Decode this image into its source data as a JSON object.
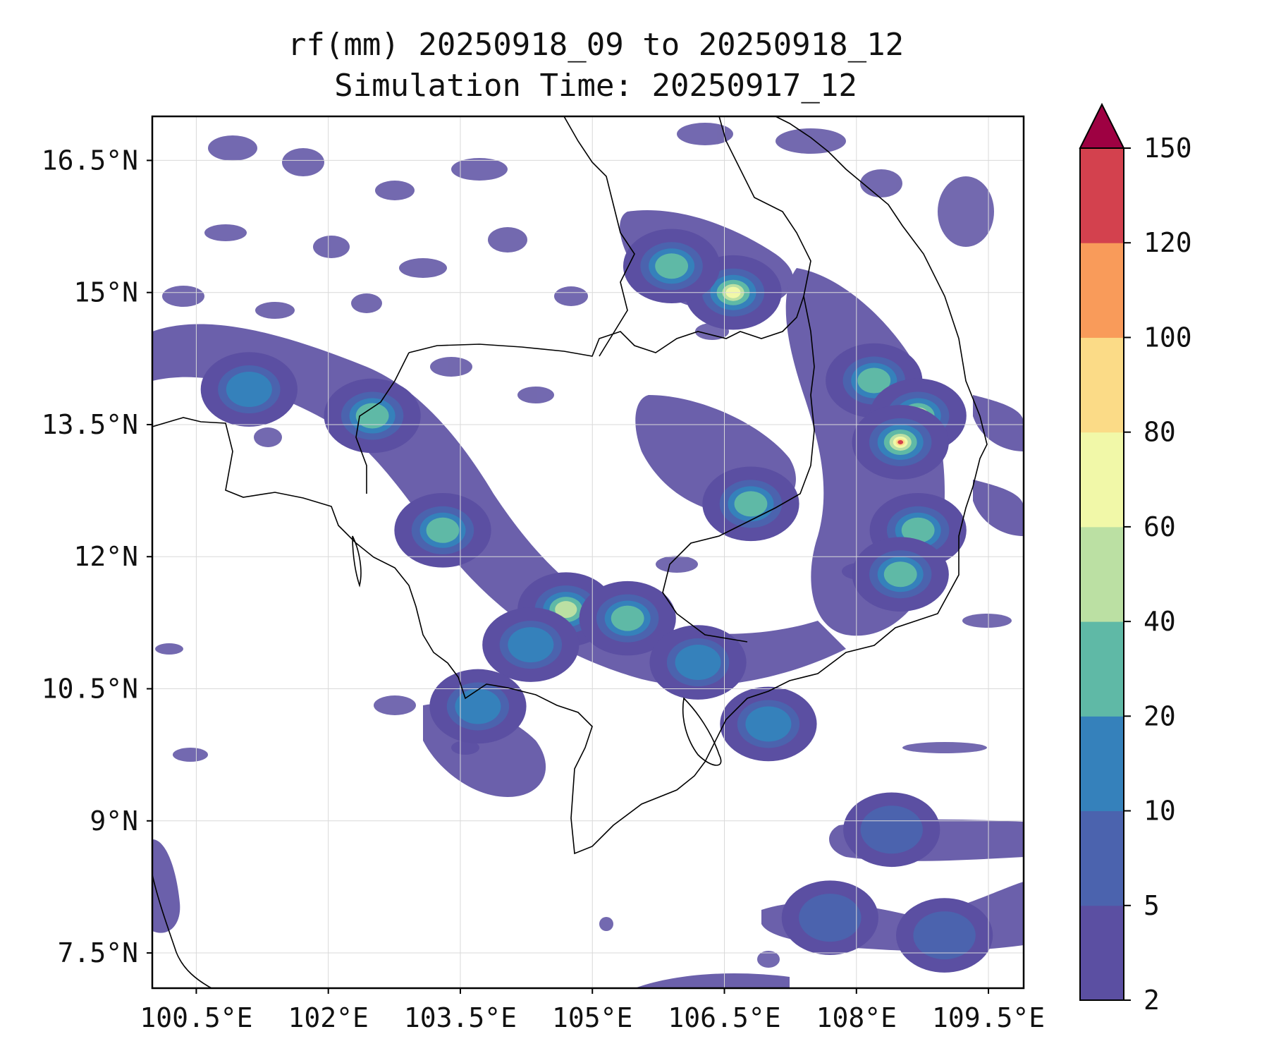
{
  "title": {
    "line1": "rf(mm) 20250918_09 to 20250918_12",
    "line2": "Simulation Time: 20250917_12"
  },
  "map": {
    "variable": "rf(mm)",
    "extent_lon": [
      100.0,
      109.9
    ],
    "extent_lat": [
      7.1,
      17.0
    ],
    "gridlines": true,
    "lon_ticks": [
      {
        "value": 100.5,
        "label": "100.5°E"
      },
      {
        "value": 102.0,
        "label": "102°E"
      },
      {
        "value": 103.5,
        "label": "103.5°E"
      },
      {
        "value": 105.0,
        "label": "105°E"
      },
      {
        "value": 106.5,
        "label": "106.5°E"
      },
      {
        "value": 108.0,
        "label": "108°E"
      },
      {
        "value": 109.5,
        "label": "109.5°E"
      }
    ],
    "lat_ticks": [
      {
        "value": 16.5,
        "label": "16.5°N"
      },
      {
        "value": 15.0,
        "label": "15°N"
      },
      {
        "value": 13.5,
        "label": "13.5°N"
      },
      {
        "value": 12.0,
        "label": "12°N"
      },
      {
        "value": 10.5,
        "label": "10.5°N"
      },
      {
        "value": 9.0,
        "label": "9°N"
      },
      {
        "value": 7.5,
        "label": "7.5°N"
      }
    ],
    "coastline_color": "#000000",
    "rain_cells": [
      {
        "lon": 101.1,
        "lat": 13.9,
        "level": 2
      },
      {
        "lon": 102.5,
        "lat": 13.6,
        "level": 3
      },
      {
        "lon": 103.3,
        "lat": 12.3,
        "level": 3
      },
      {
        "lon": 104.7,
        "lat": 11.4,
        "level": 4
      },
      {
        "lon": 105.4,
        "lat": 11.3,
        "level": 3
      },
      {
        "lon": 106.6,
        "lat": 15.0,
        "level": 5
      },
      {
        "lon": 105.9,
        "lat": 15.3,
        "level": 3
      },
      {
        "lon": 108.2,
        "lat": 14.0,
        "level": 3
      },
      {
        "lon": 108.7,
        "lat": 13.6,
        "level": 7
      },
      {
        "lon": 108.5,
        "lat": 13.3,
        "level": 8
      },
      {
        "lon": 108.7,
        "lat": 12.3,
        "level": 3
      },
      {
        "lon": 108.5,
        "lat": 11.8,
        "level": 3
      },
      {
        "lon": 106.8,
        "lat": 12.6,
        "level": 3
      },
      {
        "lon": 106.2,
        "lat": 10.8,
        "level": 2
      },
      {
        "lon": 107.0,
        "lat": 10.1,
        "level": 2
      },
      {
        "lon": 104.3,
        "lat": 11.0,
        "level": 2
      },
      {
        "lon": 103.7,
        "lat": 10.3,
        "level": 2
      },
      {
        "lon": 108.4,
        "lat": 8.9,
        "level": 1
      },
      {
        "lon": 107.7,
        "lat": 7.9,
        "level": 1
      },
      {
        "lon": 109.0,
        "lat": 7.7,
        "level": 1
      }
    ]
  },
  "colorbar": {
    "levels": [
      2,
      5,
      10,
      20,
      40,
      60,
      80,
      100,
      120,
      150
    ],
    "tick_labels": [
      "2",
      "5",
      "10",
      "20",
      "40",
      "60",
      "80",
      "100",
      "120",
      "150"
    ],
    "colors": [
      "#5b4fa2",
      "#4b63ae",
      "#3581bb",
      "#5fb9a6",
      "#bbe0a3",
      "#f1f8a8",
      "#fbdb87",
      "#f99b5a",
      "#d3414e"
    ],
    "extend_color": "#9e0142"
  }
}
